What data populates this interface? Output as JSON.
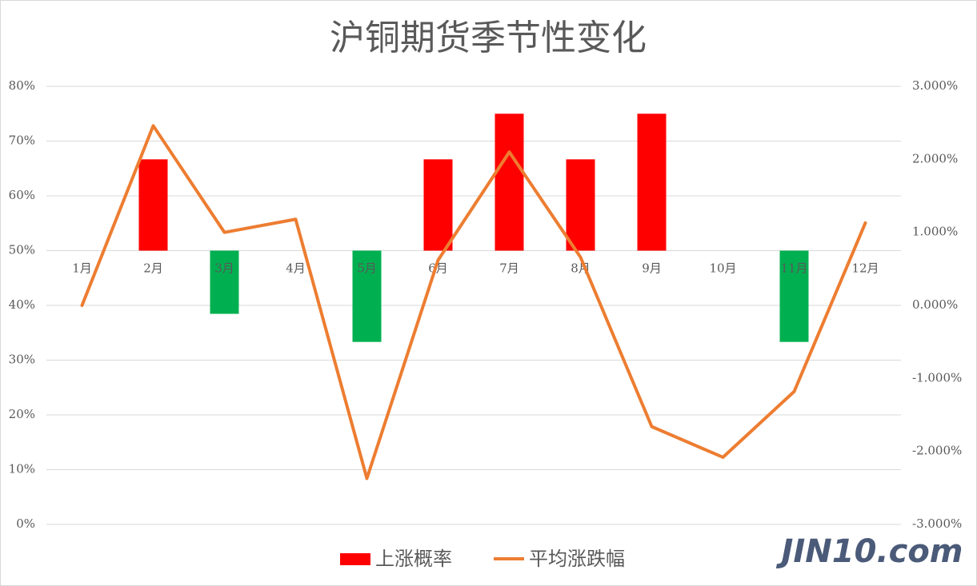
{
  "chart_data": {
    "type": "bar-line",
    "title": "沪铜期货季节性变化",
    "categories": [
      "1月",
      "2月",
      "3月",
      "4月",
      "5月",
      "6月",
      "7月",
      "8月",
      "9月",
      "10月",
      "11月",
      "12月"
    ],
    "series": [
      {
        "name": "上涨概率",
        "type": "bar",
        "color": "#ff0000",
        "negative_color": "#00b050",
        "values": [
          50,
          66.67,
          38.46,
          50,
          33.33,
          66.67,
          75,
          66.67,
          75,
          50,
          33.33,
          50
        ]
      },
      {
        "name": "平均涨跌幅",
        "type": "line",
        "axis": "y2",
        "color": "#ed7d31",
        "values": [
          0.0,
          2.46,
          1.0,
          1.18,
          -2.37,
          0.62,
          2.1,
          0.66,
          -1.66,
          -2.08,
          -1.18,
          1.13
        ]
      }
    ],
    "ylim": [
      0,
      80
    ],
    "yticks": [
      {
        "value": 0,
        "label": "0%"
      },
      {
        "value": 10,
        "label": "10%"
      },
      {
        "value": 20,
        "label": "20%"
      },
      {
        "value": 30,
        "label": "30%"
      },
      {
        "value": 40,
        "label": "40%"
      },
      {
        "value": 50,
        "label": "50%"
      },
      {
        "value": 60,
        "label": "60%"
      },
      {
        "value": 70,
        "label": "70%"
      },
      {
        "value": 80,
        "label": "80%"
      }
    ],
    "y2lim": [
      -3,
      3
    ],
    "y2ticks": [
      {
        "value": -3,
        "label": "-3.000%"
      },
      {
        "value": -2,
        "label": "-2.000%"
      },
      {
        "value": -1,
        "label": "-1.000%"
      },
      {
        "value": 0,
        "label": "0.000%"
      },
      {
        "value": 1,
        "label": "1.000%"
      },
      {
        "value": 2,
        "label": "2.000%"
      },
      {
        "value": 3,
        "label": "3.000%"
      }
    ],
    "x_axis_crossing": 50,
    "grid": true,
    "legend": "bottom",
    "watermark": "JIN10.com"
  }
}
